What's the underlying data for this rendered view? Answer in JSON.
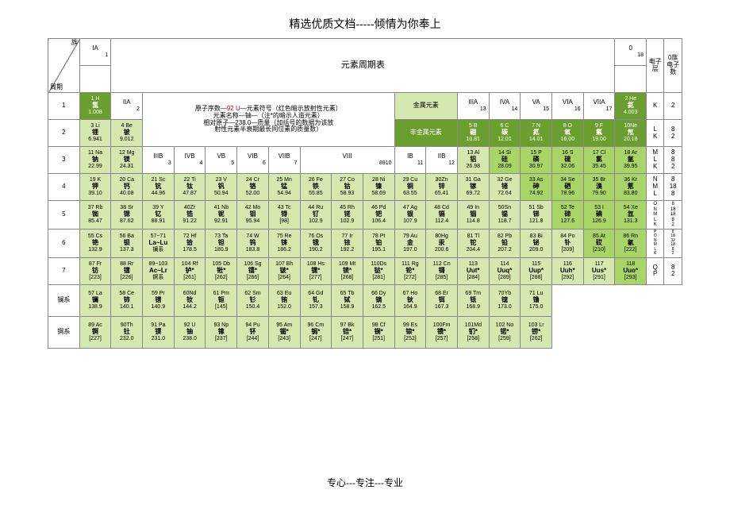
{
  "header": "精选优质文档-----倾情为你奉上",
  "footer": "专心---专注---专业",
  "title": "元素周期表",
  "corner": {
    "top": "族",
    "bottom": "周期"
  },
  "groups": [
    "IA",
    "IIA",
    "IIIB",
    "IVB",
    "VB",
    "VIB",
    "VIIB",
    "VIII",
    "IB",
    "IIB",
    "IIIA",
    "IVA",
    "VA",
    "VIA",
    "VIIA",
    "0"
  ],
  "extraHdr": {
    "dianzi": "电子层",
    "zudianzi": "0族电子数"
  },
  "legend": {
    "l1a": "原子序数",
    "l1b": "92 U",
    "l1c": "元素符号（红色暗示放射性元素）",
    "l2a": "元素名称",
    "l2b": "铀",
    "l2c": "（注*的暗示人造元素）",
    "l3a": "相对原子",
    "l3b": "238.0",
    "l3c": "质量（加括号的数据为该放",
    "l4": "射性元素半衰期最长同位素的质量数）"
  },
  "metal": "金属元素",
  "nonmetal": "非金属元素",
  "gnums": {
    "g1": "1",
    "g2": "2",
    "g3": "3",
    "g4": "4",
    "g5": "5",
    "g6": "6",
    "g7": "7",
    "g8": "8",
    "g9": "9",
    "g10": "10",
    "g11": "11",
    "g12": "12",
    "g13": "13",
    "g14": "14",
    "g15": "15",
    "g16": "16",
    "g17": "17",
    "g18": "18",
    "g8910": "8910"
  },
  "E": {
    "1": {
      "n": "1 H",
      "s": "氢",
      "m": "1.008"
    },
    "2": {
      "n": "2 He",
      "s": "氦",
      "m": "4.003"
    },
    "3": {
      "n": "3 Li",
      "s": "锂",
      "m": "6.941"
    },
    "4": {
      "n": "4 Be",
      "s": "铍",
      "m": "9.012"
    },
    "5": {
      "n": "5 B",
      "s": "硼",
      "m": "10.81"
    },
    "6": {
      "n": "6 C",
      "s": "碳",
      "m": "12.01"
    },
    "7": {
      "n": "7 N",
      "s": "氮",
      "m": "14.01"
    },
    "8": {
      "n": "8 O",
      "s": "氧",
      "m": "16.00"
    },
    "9": {
      "n": "9 F",
      "s": "氟",
      "m": "19.00"
    },
    "10": {
      "n": "10Ne",
      "s": "氖",
      "m": "20.18"
    },
    "11": {
      "n": "11 Na",
      "s": "钠",
      "m": "22.99"
    },
    "12": {
      "n": "12 Mg",
      "s": "镁",
      "m": "24.31"
    },
    "13": {
      "n": "13 Al",
      "s": "铝",
      "m": "26.98"
    },
    "14": {
      "n": "14 Si",
      "s": "硅",
      "m": "28.09"
    },
    "15": {
      "n": "15 P",
      "s": "磷",
      "m": "30.97"
    },
    "16": {
      "n": "16 S",
      "s": "硫",
      "m": "32.06"
    },
    "17": {
      "n": "17 Cl",
      "s": "氯",
      "m": "35.45"
    },
    "18": {
      "n": "18 Ar",
      "s": "氩",
      "m": "39.95"
    },
    "19": {
      "n": "19 K",
      "s": "钾",
      "m": "39.10"
    },
    "20": {
      "n": "20 Ca",
      "s": "钙",
      "m": "40.08"
    },
    "21": {
      "n": "21 Sc",
      "s": "钪",
      "m": "44.96"
    },
    "22": {
      "n": "22 Ti",
      "s": "钛",
      "m": "47.87"
    },
    "23": {
      "n": "23 V",
      "s": "钒",
      "m": "50.94"
    },
    "24": {
      "n": "24 Cr",
      "s": "铬",
      "m": "52.00"
    },
    "25": {
      "n": "25 Mn",
      "s": "锰",
      "m": "54.94"
    },
    "26": {
      "n": "26 Fe",
      "s": "铁",
      "m": "55.85"
    },
    "27": {
      "n": "27 Co",
      "s": "钴",
      "m": "58.93"
    },
    "28": {
      "n": "28 Ni",
      "s": "镍",
      "m": "58.69"
    },
    "29": {
      "n": "29 Cu",
      "s": "铜",
      "m": "63.55"
    },
    "30": {
      "n": "30Zn",
      "s": "锌",
      "m": "65.41"
    },
    "31": {
      "n": "31 Ga",
      "s": "镓",
      "m": "69.72"
    },
    "32": {
      "n": "32 Ge",
      "s": "锗",
      "m": "72.64"
    },
    "33": {
      "n": "33 As",
      "s": "砷",
      "m": "74.92"
    },
    "34": {
      "n": "34 Se",
      "s": "硒",
      "m": "78.96"
    },
    "35": {
      "n": "35 Br",
      "s": "溴",
      "m": "79.90"
    },
    "36": {
      "n": "36 Kr",
      "s": "氪",
      "m": "83.80"
    },
    "37": {
      "n": "37 Rb",
      "s": "铷",
      "m": "85.47"
    },
    "38": {
      "n": "38 Sr",
      "s": "锶",
      "m": "87.62"
    },
    "39": {
      "n": "39 Y",
      "s": "钇",
      "m": "88.91"
    },
    "40": {
      "n": "40Zr",
      "s": "锆",
      "m": "91.22"
    },
    "41": {
      "n": "41 Nb",
      "s": "铌",
      "m": "92.91"
    },
    "42": {
      "n": "42 Mo",
      "s": "钼",
      "m": "95.94"
    },
    "43": {
      "n": "43 Tc",
      "s": "锝",
      "m": "[98]"
    },
    "44": {
      "n": "44 Ru",
      "s": "钌",
      "m": "102.9"
    },
    "45": {
      "n": "45 Rh",
      "s": "铑",
      "m": "102.9"
    },
    "46": {
      "n": "46 Pd",
      "s": "钯",
      "m": "106.4"
    },
    "47": {
      "n": "47 Ag",
      "s": "银",
      "m": "107.9"
    },
    "48": {
      "n": "48 Cd",
      "s": "镉",
      "m": "112.4"
    },
    "49": {
      "n": "49 In",
      "s": "铟",
      "m": "114.8"
    },
    "50": {
      "n": "50Sn",
      "s": "锡",
      "m": "118.7"
    },
    "51": {
      "n": "51 Sb",
      "s": "锑",
      "m": "121.8"
    },
    "52": {
      "n": "52 Te",
      "s": "碲",
      "m": "127.6"
    },
    "53": {
      "n": "53 I",
      "s": "碘",
      "m": "126.9"
    },
    "54": {
      "n": "54 Xe",
      "s": "氙",
      "m": "131.3"
    },
    "55": {
      "n": "55 Cs",
      "s": "铯",
      "m": "132.9"
    },
    "56": {
      "n": "56 Ba",
      "s": "钡",
      "m": "137.3"
    },
    "5771": {
      "n": "57~71",
      "s": "La~Lu",
      "m": "镧系"
    },
    "72": {
      "n": "72 Hf",
      "s": "铪",
      "m": "178.5"
    },
    "73": {
      "n": "73 Ta",
      "s": "钽",
      "m": "180.9"
    },
    "74": {
      "n": "74 W",
      "s": "钨",
      "m": "183.8"
    },
    "75": {
      "n": "75 Re",
      "s": "铼",
      "m": "186.2"
    },
    "76": {
      "n": "76 Os",
      "s": "锇",
      "m": "190.2"
    },
    "77": {
      "n": "77 Ir",
      "s": "铱",
      "m": "192.2"
    },
    "78": {
      "n": "78 Pt",
      "s": "铂",
      "m": "195.1"
    },
    "79": {
      "n": "79 Au",
      "s": "金",
      "m": "197.0"
    },
    "80": {
      "n": "80Hg",
      "s": "汞",
      "m": "200.6"
    },
    "81": {
      "n": "81 Tl",
      "s": "铊",
      "m": "204.4"
    },
    "82": {
      "n": "82 Pb",
      "s": "铅",
      "m": "207.2"
    },
    "83": {
      "n": "83 Bi",
      "s": "铋",
      "m": "209.0"
    },
    "84": {
      "n": "84 Po",
      "s": "钋",
      "m": "[209]"
    },
    "85": {
      "n": "85 At",
      "s": "砹",
      "m": "[210]"
    },
    "86": {
      "n": "86 Rn",
      "s": "氡",
      "m": "[222]"
    },
    "87": {
      "n": "87 Fr",
      "s": "钫",
      "m": "[223]"
    },
    "88": {
      "n": "88 Rr",
      "s": "镭",
      "m": "[226]"
    },
    "89103": {
      "n": "89~103",
      "s": "Ac~Lr",
      "m": "锕系"
    },
    "104": {
      "n": "104 Rf",
      "s": "𬬻*",
      "m": "[261]"
    },
    "105": {
      "n": "105 Db",
      "s": "𬭊*",
      "m": "[262]"
    },
    "106": {
      "n": "106 Sg",
      "s": "𬭳*",
      "m": "[266]"
    },
    "107": {
      "n": "107 Bh",
      "s": "𬭛*",
      "m": "[264]"
    },
    "108": {
      "n": "108 Hs",
      "s": "𬭶*",
      "m": "[277]"
    },
    "109": {
      "n": "109 Mt",
      "s": "鿏*",
      "m": "[268]"
    },
    "110": {
      "n": "110Ds",
      "s": "𫟼*",
      "m": "[281]"
    },
    "111": {
      "n": "111 Rg",
      "s": "𬬭*",
      "m": "[272]"
    },
    "112": {
      "n": "112 Cn",
      "s": "鿔",
      "m": "[285]"
    },
    "113": {
      "n": "113",
      "s": "Uut*",
      "m": "[284]"
    },
    "114": {
      "n": "114",
      "s": "Uuq*",
      "m": "[289]"
    },
    "115": {
      "n": "115",
      "s": "Uup*",
      "m": "[288]"
    },
    "116": {
      "n": "116",
      "s": "Uuh*",
      "m": "[292]"
    },
    "117": {
      "n": "117",
      "s": "Uus*",
      "m": "[291]"
    },
    "118": {
      "n": "118",
      "s": "Uuo*",
      "m": "[293]"
    }
  },
  "La": {
    "57": {
      "n": "57 La",
      "s": "镧",
      "m": "138.9"
    },
    "58": {
      "n": "58 Ce",
      "s": "铈",
      "m": "140.1"
    },
    "59": {
      "n": "59 Pr",
      "s": "镨",
      "m": "140.9"
    },
    "60": {
      "n": "60Nd",
      "s": "钕",
      "m": "144.2"
    },
    "61": {
      "n": "61 Pm",
      "s": "钷",
      "m": "[145]"
    },
    "62": {
      "n": "62 Sm",
      "s": "钐",
      "m": "150.4"
    },
    "63": {
      "n": "63 Eu",
      "s": "铕",
      "m": "152.0"
    },
    "64": {
      "n": "64 Gd",
      "s": "钆",
      "m": "157.3"
    },
    "65": {
      "n": "65 Tb",
      "s": "铽",
      "m": "158.9"
    },
    "66": {
      "n": "66 Dy",
      "s": "镝",
      "m": "162.5"
    },
    "67": {
      "n": "67 Ho",
      "s": "钬",
      "m": "164.9"
    },
    "68": {
      "n": "68 Er",
      "s": "铒",
      "m": "167.3"
    },
    "69": {
      "n": "69 Tm",
      "s": "铥",
      "m": "168.9"
    },
    "70": {
      "n": "70Yb",
      "s": "镱",
      "m": "173.0"
    },
    "71": {
      "n": "71 Lu",
      "s": "镥",
      "m": "175.0"
    }
  },
  "Ac": {
    "89": {
      "n": "89 Ac",
      "s": "锕",
      "m": "[227]"
    },
    "90": {
      "n": "90Th",
      "s": "钍",
      "m": "232.0"
    },
    "91": {
      "n": "91 Pa",
      "s": "镤",
      "m": "231.0"
    },
    "92": {
      "n": "92 U",
      "s": "铀",
      "m": "238.0"
    },
    "93": {
      "n": "93 Np",
      "s": "镎",
      "m": "[237]"
    },
    "94": {
      "n": "94 Pu",
      "s": "钚",
      "m": "[244]"
    },
    "95": {
      "n": "95 Am",
      "s": "镅*",
      "m": "[243]"
    },
    "96": {
      "n": "96 Cm",
      "s": "锔*",
      "m": "[247]"
    },
    "97": {
      "n": "97 Bk",
      "s": "锫*",
      "m": "[247]"
    },
    "98": {
      "n": "98 Cf",
      "s": "锎*",
      "m": "[251]"
    },
    "99": {
      "n": "99 Es",
      "s": "锿*",
      "m": "[252]"
    },
    "100": {
      "n": "100Fm",
      "s": "镄*",
      "m": "[257]"
    },
    "101": {
      "n": "101Md",
      "s": "钔*",
      "m": "[258]"
    },
    "102": {
      "n": "102 No",
      "s": "锘*",
      "m": "[259]"
    },
    "103": {
      "n": "103 Lr",
      "s": "铹*",
      "m": "[262]"
    }
  },
  "shells": {
    "1": "K",
    "2": "L\nK",
    "3": "M\nL\nK",
    "4": "N\nM\nL",
    "5": "O\nN\nM\nL\nK",
    "6": "P\nO\nN\nM\nL\nK",
    "7": "Q\nP"
  },
  "shellN": {
    "1": "2",
    "2": "8\n2",
    "3": "8\n8\n2",
    "4": "8\n18\n8",
    "5": "8\n18\n18\n8\n2",
    "6": "8\n18\n32\n18\n8\n2",
    "7": "8\n2"
  },
  "series": {
    "la": "镧系",
    "ac": "锕系"
  },
  "colors": {
    "dark": "#6a9e2e",
    "med": "#a8d468",
    "light": "#d4e8b0",
    "border": "#888888",
    "bg": "#ffffff",
    "text": "#000000",
    "red": "#cc0000"
  }
}
